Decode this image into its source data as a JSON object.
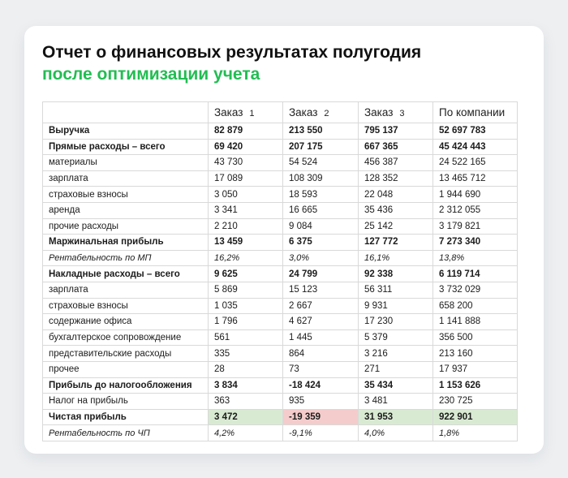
{
  "page": {
    "background_color": "#edeff1",
    "card_color": "#ffffff"
  },
  "header": {
    "title_line1": "Отчет о финансовых результатах полугодия",
    "title_line2": "после оптимизации учета",
    "accent_color": "#22bd52"
  },
  "table": {
    "colors": {
      "border": "#d9d9d9",
      "highlight_green": "#d9ead3",
      "highlight_red": "#f4cccc"
    },
    "columns": [
      {
        "label": "",
        "num": ""
      },
      {
        "label": "Заказ",
        "num": "1"
      },
      {
        "label": "Заказ",
        "num": "2"
      },
      {
        "label": "Заказ",
        "num": "3"
      },
      {
        "label": "По компании",
        "num": ""
      }
    ],
    "rows": [
      {
        "label": "Выручка",
        "style": "bold",
        "values": [
          "82 879",
          "213 550",
          "795 137",
          "52 697 783"
        ]
      },
      {
        "label": "Прямые расходы – всего",
        "style": "bold",
        "values": [
          "69 420",
          "207 175",
          "667 365",
          "45 424 443"
        ]
      },
      {
        "label": "материалы",
        "style": "normal",
        "values": [
          "43 730",
          "54 524",
          "456 387",
          "24 522 165"
        ]
      },
      {
        "label": "зарплата",
        "style": "normal",
        "values": [
          "17 089",
          "108 309",
          "128 352",
          "13 465 712"
        ]
      },
      {
        "label": "страховые взносы",
        "style": "normal",
        "values": [
          "3 050",
          "18 593",
          "22 048",
          "1 944 690"
        ]
      },
      {
        "label": "аренда",
        "style": "normal",
        "values": [
          "3 341",
          "16 665",
          "35 436",
          "2 312 055"
        ]
      },
      {
        "label": "прочие расходы",
        "style": "normal",
        "values": [
          "2 210",
          "9 084",
          "25 142",
          "3 179 821"
        ]
      },
      {
        "label": "Маржинальная прибыль",
        "style": "bold",
        "values": [
          "13 459",
          "6 375",
          "127 772",
          "7 273 340"
        ]
      },
      {
        "label": "Рентабельность по МП",
        "style": "italic",
        "values": [
          "16,2%",
          "3,0%",
          "16,1%",
          "13,8%"
        ]
      },
      {
        "label": "Накладные расходы – всего",
        "style": "bold",
        "values": [
          "9 625",
          "24 799",
          "92 338",
          "6 119 714"
        ]
      },
      {
        "label": "зарплата",
        "style": "normal",
        "values": [
          "5 869",
          "15 123",
          "56 311",
          "3 732 029"
        ]
      },
      {
        "label": "страховые взносы",
        "style": "normal",
        "values": [
          "1 035",
          "2 667",
          "9 931",
          "658 200"
        ]
      },
      {
        "label": "содержание офиса",
        "style": "normal",
        "values": [
          "1 796",
          "4 627",
          "17 230",
          "1 141 888"
        ]
      },
      {
        "label": "бухгалтерское сопровождение",
        "style": "normal",
        "values": [
          "561",
          "1 445",
          "5 379",
          "356 500"
        ]
      },
      {
        "label": "представительские расходы",
        "style": "normal",
        "values": [
          "335",
          "864",
          "3 216",
          "213 160"
        ]
      },
      {
        "label": "прочее",
        "style": "normal",
        "values": [
          "28",
          "73",
          "271",
          "17 937"
        ]
      },
      {
        "label": "Прибыль до налогообложения",
        "style": "bold",
        "values": [
          "3 834",
          "-18 424",
          "35 434",
          "1 153 626"
        ]
      },
      {
        "label": "Налог на прибыль",
        "style": "normal",
        "values": [
          "363",
          "935",
          "3 481",
          "230 725"
        ]
      },
      {
        "label": "Чистая прибыль",
        "style": "bold",
        "values": [
          "3 472",
          "-19 359",
          "31 953",
          "922 901"
        ],
        "highlight": [
          "green",
          "red",
          "green",
          "green"
        ]
      },
      {
        "label": "Рентабельность по ЧП",
        "style": "italic",
        "values": [
          "4,2%",
          "-9,1%",
          "4,0%",
          "1,8%"
        ]
      }
    ]
  }
}
